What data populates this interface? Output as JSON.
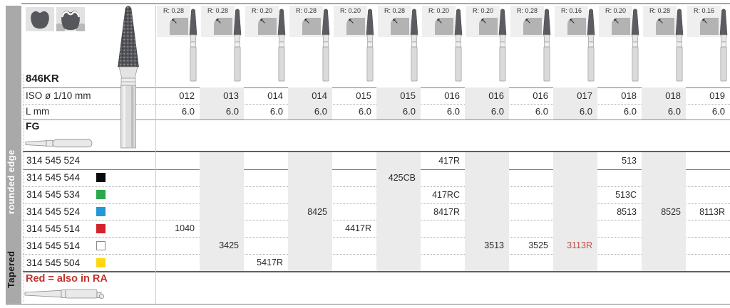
{
  "sidebar": {
    "vertical_label_top": "rounded edge",
    "vertical_label_bottom": "Tapered"
  },
  "header": {
    "model": "846KR"
  },
  "table": {
    "row_labels": {
      "iso": "ISO ø 1/10 mm",
      "length": "L mm",
      "shank": "FG"
    },
    "columns": [
      {
        "radius_label": "R: 0.28",
        "iso": "012",
        "length": "6.0"
      },
      {
        "radius_label": "R: 0.28",
        "iso": "013",
        "length": "6.0"
      },
      {
        "radius_label": "R: 0.20",
        "iso": "014",
        "length": "6.0"
      },
      {
        "radius_label": "R: 0.28",
        "iso": "014",
        "length": "6.0"
      },
      {
        "radius_label": "R: 0.20",
        "iso": "015",
        "length": "6.0"
      },
      {
        "radius_label": "R: 0.28",
        "iso": "015",
        "length": "6.0"
      },
      {
        "radius_label": "R: 0.20",
        "iso": "016",
        "length": "6.0"
      },
      {
        "radius_label": "R: 0.20",
        "iso": "016",
        "length": "6.0"
      },
      {
        "radius_label": "R: 0.28",
        "iso": "016",
        "length": "6.0"
      },
      {
        "radius_label": "R: 0.16",
        "iso": "017",
        "length": "6.0"
      },
      {
        "radius_label": "R: 0.20",
        "iso": "018",
        "length": "6.0"
      },
      {
        "radius_label": "R: 0.28",
        "iso": "018",
        "length": "6.0"
      },
      {
        "radius_label": "R: 0.16",
        "iso": "019",
        "length": "6.0"
      }
    ],
    "products": [
      {
        "order_code": "314 545 524",
        "grit_chip": null,
        "cells": {
          "7": "417R",
          "11": "513"
        }
      },
      {
        "order_code": "314 545 544",
        "grit_chip": "black",
        "cells": {
          "6": "425CB"
        }
      },
      {
        "order_code": "314 545 534",
        "grit_chip": "green",
        "cells": {
          "7": "417RC",
          "11": "513C"
        }
      },
      {
        "order_code": "314 545 524",
        "grit_chip": "blue",
        "cells": {
          "4": "8425",
          "7": "8417R",
          "11": "8513",
          "12": "8525",
          "13": "8113R"
        }
      },
      {
        "order_code": "314 545 514",
        "grit_chip": "red",
        "cells": {
          "1": "1040",
          "5": "4417R"
        }
      },
      {
        "order_code": "314 545 514",
        "grit_chip": "white",
        "cells": {
          "2": "3425",
          "8": "3513",
          "9": "3525",
          "10": "3113R"
        },
        "red_cells": [
          "10"
        ]
      },
      {
        "order_code": "314 545 504",
        "grit_chip": "yellow",
        "cells": {
          "3": "5417R"
        }
      }
    ]
  },
  "footer": {
    "note": "Red = also in RA"
  },
  "glyphs": {
    "radius_arrow": "↖"
  },
  "icons": {
    "indication_icon_1": "molar-crown-icon",
    "indication_icon_2": "molar-occlusal-outline-icon",
    "radius_icon": "rounded-corner-arrow-icon",
    "large_bur": "diamond-taper-round-end-bur",
    "column_bur": "taper-round-end-bur-icon",
    "fg_shank": "fg-shank-icon",
    "ra_shank": "ra-shank-icon"
  },
  "colors": {
    "chip_black": "#0b0b0b",
    "chip_green": "#2ba84a",
    "chip_blue": "#2497d6",
    "chip_red": "#d5232b",
    "chip_white": "#ffffff",
    "chip_yellow": "#fed714",
    "note_red": "#c0332b",
    "cell_red": "#c0504c",
    "stripe": "#ebebeb"
  }
}
